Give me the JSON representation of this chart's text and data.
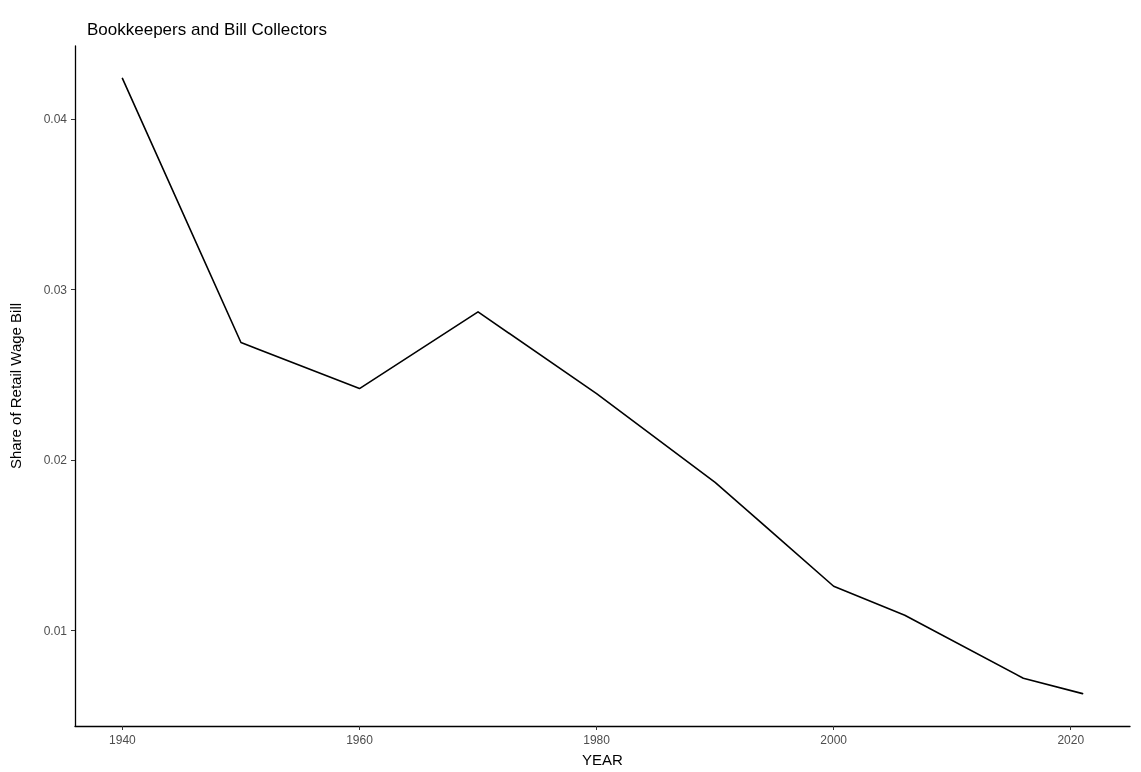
{
  "chart_data": {
    "type": "line",
    "title": "Bookkeepers and Bill Collectors",
    "xlabel": "YEAR",
    "ylabel": "Share of Retail Wage Bill",
    "x": [
      1940,
      1950,
      1960,
      1970,
      1980,
      1990,
      2000,
      2006,
      2016,
      2021
    ],
    "series": [
      {
        "color": "#000000",
        "values": [
          0.0424,
          0.0269,
          0.0242,
          0.0287,
          0.0239,
          0.0187,
          0.0126,
          0.0109,
          0.0072,
          0.0063
        ]
      }
    ],
    "xlim": [
      1936,
      2025
    ],
    "xticks": [
      1940,
      1960,
      1980,
      2000,
      2020
    ],
    "ylim": [
      0.0044,
      0.0443
    ],
    "yticks": [
      0.01,
      0.02,
      0.03,
      0.04
    ],
    "grid": false,
    "marker": "none",
    "line_style": "solid"
  }
}
